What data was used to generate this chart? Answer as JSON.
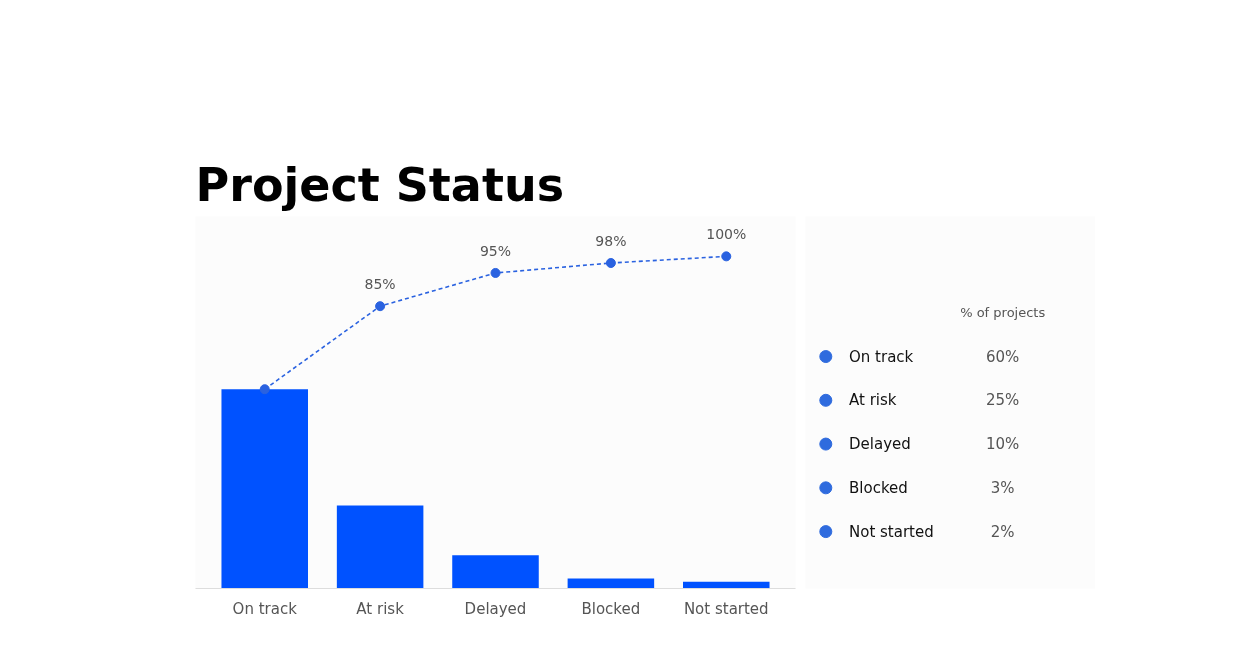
{
  "chart_data": [
    {
      "type": "bar",
      "title": "Project Status",
      "categories": [
        "On track",
        "At risk",
        "Delayed",
        "Blocked",
        "Not started"
      ],
      "tick_labels": "x",
      "series": [
        {
          "color": "#0052ff",
          "values": [
            60,
            25,
            10,
            3,
            2
          ]
        },
        {
          "type": "line",
          "color": "#2a62e0",
          "values": [
            60,
            85,
            95,
            98,
            100
          ],
          "value_labels": [
            null,
            "85%",
            "95%",
            "98%",
            "100%"
          ],
          "line_style": "dashed",
          "marker": "circle"
        }
      ]
    },
    {
      "type": "other",
      "legend_title": "% of projects",
      "categories": [
        "On track",
        "At risk",
        "Delayed",
        "Blocked",
        "Not started"
      ],
      "value_labels": [
        "60%",
        "25%",
        "10%",
        "3%",
        "2%"
      ],
      "colors": [
        "#2f6bde",
        "#2f6bde",
        "#2f6bde",
        "#2f6bde",
        "#2f6bde"
      ]
    }
  ]
}
